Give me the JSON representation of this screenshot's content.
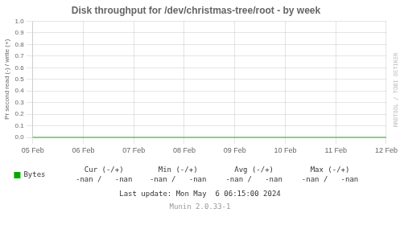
{
  "chart_data": {
    "type": "line",
    "title": "Disk throughput for /dev/christmas-tree/root - by week",
    "y_label": "Pr second read (-) / write (+)",
    "categories": [
      "05 Feb",
      "06 Feb",
      "07 Feb",
      "08 Feb",
      "09 Feb",
      "10 Feb",
      "11 Feb",
      "12 Feb"
    ],
    "series": [
      {
        "name": "Bytes",
        "color": "#00aa00",
        "values": [
          0,
          0,
          0,
          0,
          0,
          0,
          0,
          0
        ]
      }
    ],
    "ylim": [
      0,
      1
    ],
    "yticks": [
      {
        "value": 0,
        "label": "0.0"
      },
      0.1,
      0.2,
      0.3,
      0.4,
      0.5,
      0.6,
      0.7,
      0.8,
      0.9,
      {
        "value": 1,
        "label": "1.0"
      }
    ],
    "grid": true,
    "legend": "bottom",
    "annotations": [
      "Cur (-/+)",
      "-nan /   -nan",
      "Min (-/+)",
      "-nan /   -nan",
      "Avg (-/+)",
      "-nan /   -nan",
      "Max (-/+)",
      "-nan /   -nan",
      "Last update: Mon May  6 06:15:00 2024",
      "Munin 2.0.33-1",
      "RRDTOOL / TOBI OETIKER"
    ]
  }
}
